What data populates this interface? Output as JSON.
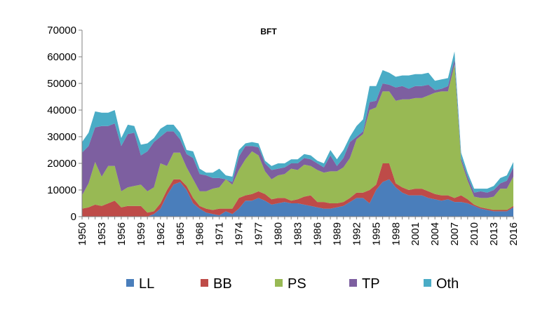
{
  "chart_data": {
    "type": "area",
    "stacked": true,
    "title": "BFT",
    "xlabel": "",
    "ylabel": "",
    "ylim": [
      0,
      70000
    ],
    "y_ticks": [
      "0",
      "10000",
      "20000",
      "30000",
      "40000",
      "50000",
      "60000",
      "70000"
    ],
    "x_tick_labels": [
      "1950",
      "1953",
      "1956",
      "1959",
      "1962",
      "1965",
      "1968",
      "1971",
      "1974",
      "1977",
      "1980",
      "1983",
      "1986",
      "1989",
      "1992",
      "1995",
      "1998",
      "2001",
      "2004",
      "2007",
      "2010",
      "2013",
      "2016"
    ],
    "grid": false,
    "legend_position": "bottom",
    "x": [
      1950,
      1951,
      1952,
      1953,
      1954,
      1955,
      1956,
      1957,
      1958,
      1959,
      1960,
      1961,
      1962,
      1963,
      1964,
      1965,
      1966,
      1967,
      1968,
      1969,
      1970,
      1971,
      1972,
      1973,
      1974,
      1975,
      1976,
      1977,
      1978,
      1979,
      1980,
      1981,
      1982,
      1983,
      1984,
      1985,
      1986,
      1987,
      1988,
      1989,
      1990,
      1991,
      1992,
      1993,
      1994,
      1995,
      1996,
      1997,
      1998,
      1999,
      2000,
      2001,
      2002,
      2003,
      2004,
      2005,
      2006,
      2007,
      2008,
      2009,
      2010,
      2011,
      2012,
      2013,
      2014,
      2015,
      2016
    ],
    "series": [
      {
        "name": "LL",
        "color": "#4a7ebb",
        "values": [
          0,
          0,
          0,
          0,
          0,
          0,
          0,
          0,
          0,
          0,
          0,
          1000,
          3000,
          8000,
          12000,
          13000,
          10000,
          5000,
          3000,
          1500,
          1000,
          500,
          2000,
          1000,
          3000,
          6000,
          6000,
          7000,
          6000,
          4500,
          5000,
          5500,
          5000,
          5000,
          4500,
          4000,
          3500,
          3000,
          3000,
          3500,
          4000,
          5500,
          7000,
          7000,
          5000,
          10000,
          13000,
          14000,
          11000,
          9000,
          8000,
          8000,
          8000,
          7000,
          6500,
          6000,
          6500,
          5500,
          5500,
          5000,
          4000,
          3000,
          2500,
          2000,
          2000,
          2000,
          3500
        ]
      },
      {
        "name": "BB",
        "color": "#be4b48",
        "values": [
          3000,
          3500,
          4500,
          4000,
          5000,
          6000,
          3500,
          4000,
          4000,
          4000,
          1500,
          1000,
          2000,
          2000,
          2000,
          1000,
          1500,
          2000,
          1000,
          1500,
          1500,
          2500,
          1000,
          2000,
          4000,
          2000,
          2500,
          2500,
          2500,
          2000,
          2000,
          1500,
          1000,
          1500,
          3000,
          4000,
          2000,
          2500,
          2000,
          1500,
          1500,
          1500,
          2000,
          2000,
          5000,
          2000,
          7000,
          6000,
          1500,
          2000,
          2000,
          2500,
          2500,
          2500,
          2000,
          2000,
          1500,
          1500,
          2500,
          1500,
          500,
          500,
          500,
          500,
          500,
          500,
          500
        ]
      },
      {
        "name": "PS",
        "color": "#98b954",
        "values": [
          5000,
          9000,
          16000,
          11000,
          14000,
          13000,
          6000,
          7000,
          7500,
          8000,
          8000,
          9000,
          15000,
          9000,
          10000,
          10000,
          7000,
          7000,
          5500,
          6500,
          8000,
          8000,
          11000,
          9000,
          10500,
          13500,
          16000,
          13500,
          8500,
          7500,
          8500,
          9000,
          12000,
          11000,
          12000,
          11000,
          12000,
          11000,
          12000,
          12000,
          13000,
          15000,
          20000,
          22000,
          30000,
          29000,
          27000,
          27000,
          31000,
          33000,
          34000,
          34000,
          34000,
          36000,
          38000,
          39000,
          39000,
          50000,
          13000,
          7000,
          3000,
          3500,
          4000,
          5000,
          8000,
          8000,
          11000
        ]
      },
      {
        "name": "TP",
        "color": "#7d5fa0",
        "values": [
          16000,
          14000,
          13000,
          19000,
          15000,
          16000,
          17000,
          20000,
          20000,
          11000,
          15000,
          17000,
          10000,
          13000,
          8000,
          5000,
          5000,
          8000,
          6500,
          6000,
          4000,
          3500,
          0,
          1000,
          5000,
          5000,
          2000,
          3000,
          3000,
          3500,
          2500,
          2500,
          2000,
          2500,
          2500,
          2500,
          2500,
          2000,
          6000,
          2000,
          3500,
          6000,
          1000,
          1000,
          3000,
          2500,
          3000,
          2500,
          5000,
          5000,
          4000,
          4500,
          4500,
          4000,
          1000,
          1000,
          2000,
          2000,
          1000,
          1500,
          1500,
          2500,
          2000,
          2500,
          2000,
          3000,
          3500
        ]
      },
      {
        "name": "Oth",
        "color": "#4aacc6",
        "values": [
          4000,
          5000,
          6000,
          5000,
          5000,
          5000,
          3000,
          3500,
          2500,
          4000,
          3000,
          1500,
          3000,
          2500,
          2500,
          2500,
          1500,
          2500,
          2000,
          1000,
          2000,
          3500,
          1500,
          2000,
          2500,
          1000,
          1500,
          1500,
          1000,
          1500,
          2000,
          1500,
          1500,
          1500,
          1500,
          1500,
          1000,
          1500,
          2000,
          2500,
          3000,
          2000,
          4000,
          4500,
          6000,
          5500,
          5000,
          4500,
          4000,
          4000,
          5000,
          4500,
          4500,
          4500,
          3500,
          3500,
          3000,
          3000,
          2000,
          1500,
          1500,
          1000,
          1500,
          1500,
          2000,
          2000,
          2000
        ]
      }
    ]
  }
}
